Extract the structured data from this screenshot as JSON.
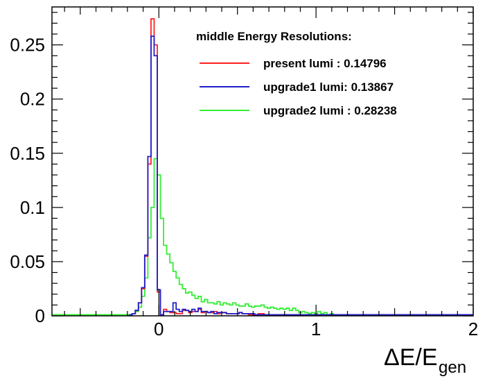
{
  "chart_data": {
    "type": "line",
    "title": "",
    "xlabel": "ΔE/E",
    "xlabel_subscript": "gen",
    "ylabel": "",
    "xlim": [
      -0.68,
      2.0
    ],
    "ylim": [
      0,
      0.285
    ],
    "x_ticks": [
      0,
      1,
      2
    ],
    "y_ticks": [
      0,
      0.05,
      0.1,
      0.15,
      0.2,
      0.25
    ],
    "y_tick_labels": [
      "0",
      "0.05",
      "0.1",
      "0.15",
      "0.2",
      "0.25"
    ],
    "grid": false,
    "legend": {
      "title": "middle Energy Resolutions:",
      "placement": "top-right"
    },
    "series": [
      {
        "name": "present lumi : 0.14796",
        "color": "#ff2020",
        "x": [
          -0.18,
          -0.16,
          -0.14,
          -0.12,
          -0.1,
          -0.08,
          -0.06,
          -0.04,
          -0.02,
          0.0,
          0.02,
          0.04,
          0.06,
          0.08,
          0.1,
          0.12,
          0.14,
          0.16,
          0.18,
          0.2,
          0.22,
          0.24,
          0.26,
          0.28,
          0.3,
          0.32,
          0.34,
          0.36,
          0.38,
          0.4,
          0.42,
          0.44,
          0.46,
          0.48,
          0.5,
          0.52,
          0.54,
          0.56,
          0.58,
          0.6,
          0.62,
          0.64,
          0.66,
          0.68,
          0.7,
          0.72,
          0.74,
          0.76,
          0.78,
          0.8,
          0.82,
          0.84,
          0.86,
          0.88,
          0.9,
          0.92,
          0.94,
          0.96,
          0.98,
          1.0
        ],
        "y": [
          0.001,
          0.002,
          0.005,
          0.012,
          0.025,
          0.055,
          0.14,
          0.274,
          0.25,
          0.022,
          0.001,
          0.006,
          0.004,
          0.003,
          0.003,
          0.002,
          0.002,
          0.005,
          0.005,
          0.003,
          0.004,
          0.004,
          0.006,
          0.003,
          0.004,
          0.003,
          0.003,
          0.004,
          0.002,
          0.003,
          0.003,
          0.002,
          0.002,
          0.002,
          0.002,
          0.003,
          0.002,
          0.002,
          0.001,
          0.001,
          0.001,
          0.002,
          0.002,
          0.001,
          0.001,
          0.001,
          0.001,
          0.001,
          0.001,
          0.001,
          0.001,
          0.001,
          0.001,
          0.001,
          0.001,
          0.001,
          0.001,
          0.001,
          0.001,
          0.001
        ]
      },
      {
        "name": "upgrade1 lumi: 0.13867",
        "color": "#1f1fc8",
        "x": [
          -0.18,
          -0.16,
          -0.14,
          -0.12,
          -0.1,
          -0.08,
          -0.06,
          -0.04,
          -0.02,
          0.0,
          0.02,
          0.04,
          0.06,
          0.08,
          0.1,
          0.12,
          0.14,
          0.16,
          0.18,
          0.2,
          0.22,
          0.24,
          0.26,
          0.28,
          0.3,
          0.32,
          0.34,
          0.36,
          0.38,
          0.4,
          0.42,
          0.44,
          0.46,
          0.48,
          0.5,
          0.52,
          0.54,
          0.56,
          0.58,
          0.6,
          0.62,
          0.64,
          0.66,
          0.68,
          0.7,
          0.72,
          0.74,
          0.76,
          0.78,
          0.8,
          0.82,
          0.84,
          0.86,
          0.88,
          0.9,
          0.92,
          0.94,
          0.96,
          0.98,
          1.0
        ],
        "y": [
          0.001,
          0.002,
          0.005,
          0.012,
          0.026,
          0.056,
          0.147,
          0.258,
          0.24,
          0.024,
          0.001,
          0.004,
          0.004,
          0.004,
          0.012,
          0.006,
          0.004,
          0.006,
          0.005,
          0.004,
          0.006,
          0.004,
          0.007,
          0.004,
          0.004,
          0.003,
          0.004,
          0.002,
          0.003,
          0.003,
          0.003,
          0.002,
          0.002,
          0.002,
          0.002,
          0.003,
          0.002,
          0.002,
          0.002,
          0.002,
          0.001,
          0.001,
          0.001,
          0.001,
          0.001,
          0.001,
          0.001,
          0.001,
          0.001,
          0.001,
          0.001,
          0.001,
          0.001,
          0.001,
          0.001,
          0.001,
          0.001,
          0.001,
          0.001,
          0.001
        ]
      },
      {
        "name": "upgrade2 lumi : 0.28238",
        "color": "#33ee33",
        "x": [
          -0.18,
          -0.16,
          -0.14,
          -0.12,
          -0.1,
          -0.08,
          -0.06,
          -0.04,
          -0.02,
          0.0,
          0.02,
          0.04,
          0.06,
          0.08,
          0.1,
          0.12,
          0.14,
          0.16,
          0.18,
          0.2,
          0.22,
          0.24,
          0.26,
          0.28,
          0.3,
          0.32,
          0.34,
          0.36,
          0.38,
          0.4,
          0.42,
          0.44,
          0.46,
          0.48,
          0.5,
          0.52,
          0.54,
          0.56,
          0.58,
          0.6,
          0.62,
          0.64,
          0.66,
          0.68,
          0.7,
          0.72,
          0.74,
          0.76,
          0.78,
          0.8,
          0.82,
          0.84,
          0.86,
          0.88,
          0.9,
          0.92,
          0.94,
          0.96,
          0.98,
          1.0,
          1.02,
          1.04,
          1.06,
          1.08,
          1.1,
          1.12,
          1.14
        ],
        "y": [
          0.001,
          0.002,
          0.004,
          0.008,
          0.018,
          0.035,
          0.072,
          0.1,
          0.145,
          0.13,
          0.09,
          0.065,
          0.057,
          0.049,
          0.041,
          0.035,
          0.029,
          0.025,
          0.021,
          0.022,
          0.019,
          0.016,
          0.018,
          0.013,
          0.015,
          0.012,
          0.012,
          0.011,
          0.013,
          0.01,
          0.012,
          0.011,
          0.01,
          0.012,
          0.01,
          0.009,
          0.009,
          0.011,
          0.009,
          0.008,
          0.009,
          0.009,
          0.01,
          0.008,
          0.007,
          0.008,
          0.007,
          0.006,
          0.007,
          0.006,
          0.007,
          0.005,
          0.007,
          0.005,
          0.003,
          0.004,
          0.003,
          0.002,
          0.003,
          0.002,
          0.004,
          0.002,
          0.003,
          0.001,
          0.002,
          0.001,
          0.001
        ]
      }
    ]
  }
}
